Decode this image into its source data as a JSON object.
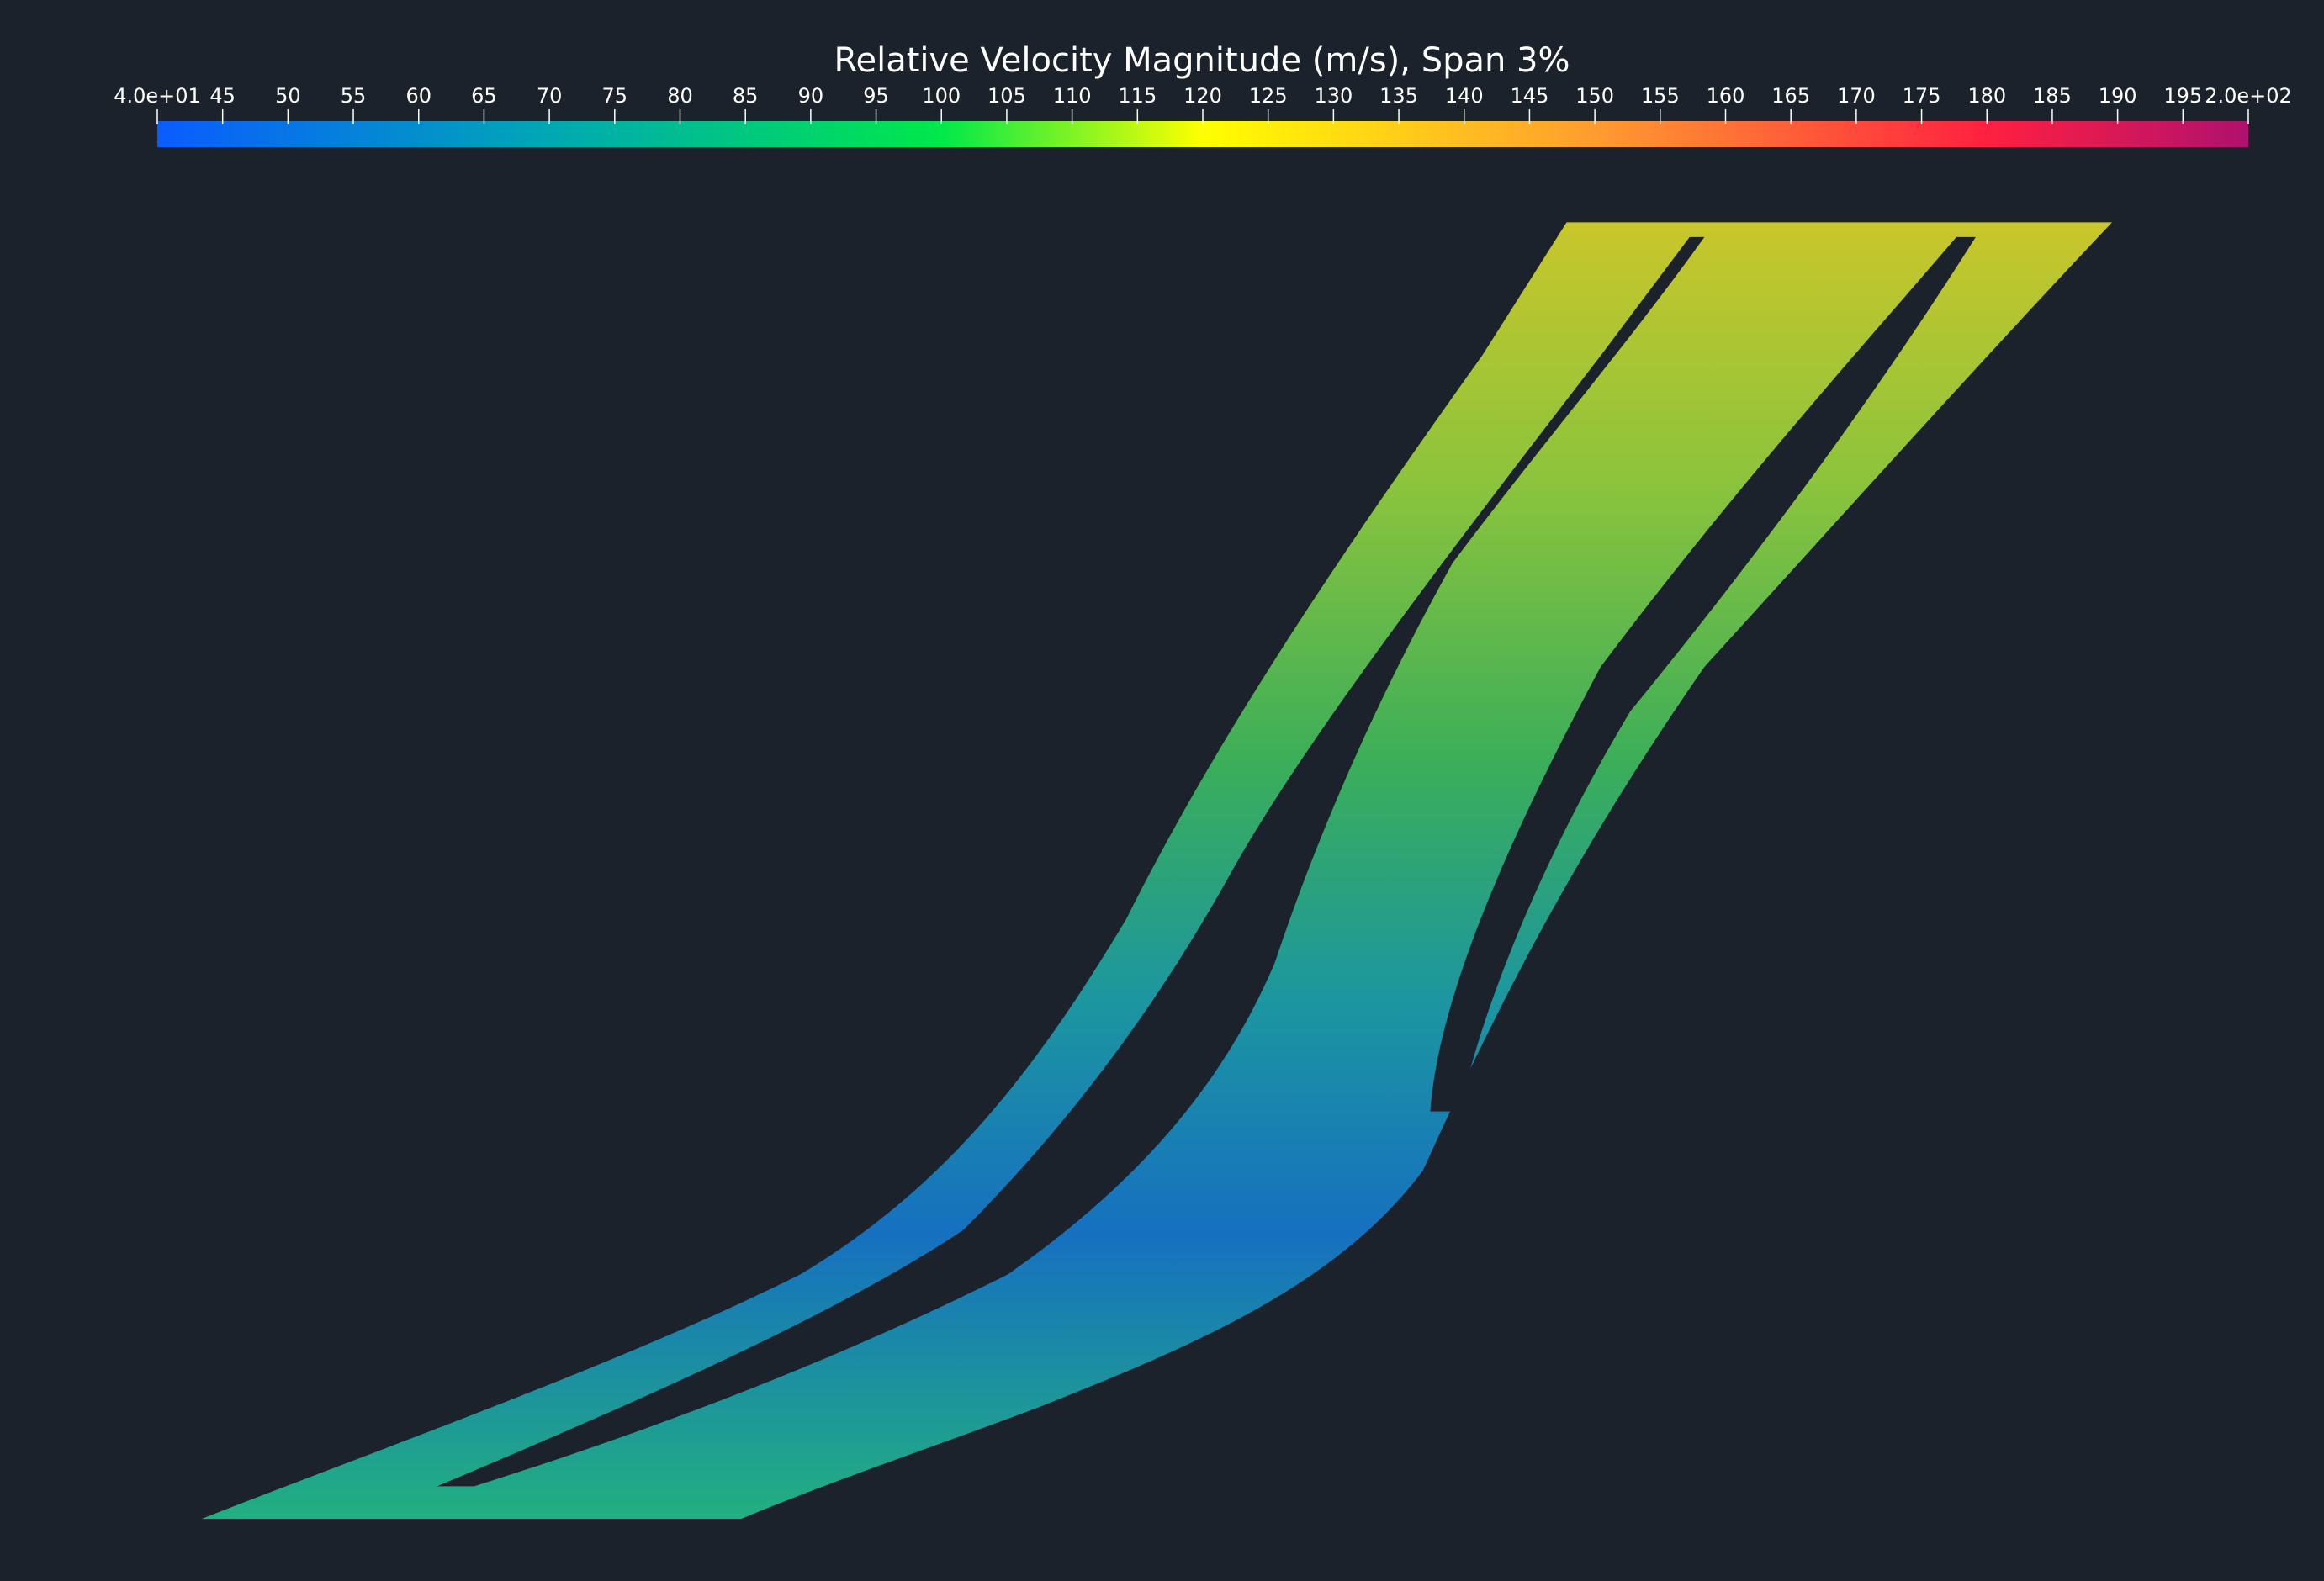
{
  "chart_data": {
    "type": "colorbar",
    "title": "Relative Velocity Magnitude (m/s), Span 3%",
    "xlim": [
      40,
      200
    ],
    "xticks": [
      {
        "value": 40,
        "label": "4.0e+01"
      },
      45,
      50,
      55,
      60,
      65,
      70,
      75,
      80,
      85,
      90,
      95,
      100,
      105,
      110,
      115,
      120,
      125,
      130,
      135,
      140,
      145,
      150,
      155,
      160,
      165,
      170,
      175,
      180,
      185,
      190,
      195,
      {
        "value": 200,
        "label": "2.0e+02"
      }
    ],
    "colormap": [
      {
        "value": 40,
        "color": "#0a5cff"
      },
      {
        "value": 70,
        "color": "#00a8b4"
      },
      {
        "value": 100,
        "color": "#00e84a"
      },
      {
        "value": 120,
        "color": "#ffff00"
      },
      {
        "value": 150,
        "color": "#ff9c30"
      },
      {
        "value": 180,
        "color": "#ff2040"
      },
      {
        "value": 200,
        "color": "#b0106e"
      }
    ]
  }
}
